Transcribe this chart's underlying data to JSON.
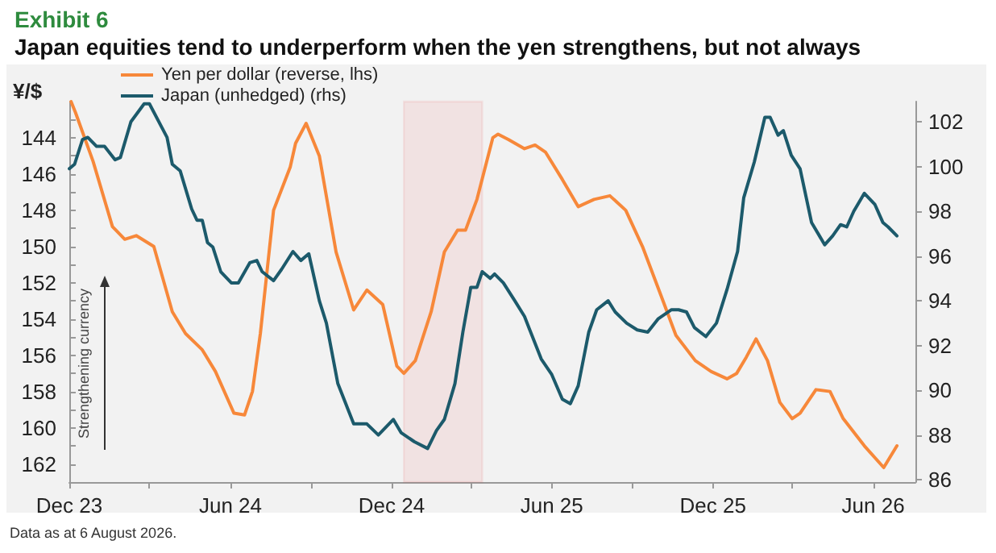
{
  "chart_data": {
    "type": "line",
    "title": "Exhibit 6",
    "subtitle": "Japan equities tend to underperform when the yen strengthens, but not always",
    "ylabel": "¥/$",
    "annotations": [
      "Strengthening currency",
      "Data as at 6 August 2026."
    ],
    "xlim": [
      "2023-12-01",
      "2026-07-19"
    ],
    "xticks": [
      {
        "value": "2023-12-01",
        "label": "Dec 23"
      },
      {
        "value": "2024-03-01",
        "label": null
      },
      {
        "value": "2024-06-01",
        "label": "Jun 24"
      },
      {
        "value": "2024-09-01",
        "label": null
      },
      {
        "value": "2024-12-01",
        "label": "Dec 24"
      },
      {
        "value": "2025-03-01",
        "label": null
      },
      {
        "value": "2025-06-01",
        "label": "Jun 25"
      },
      {
        "value": "2025-09-01",
        "label": null
      },
      {
        "value": "2025-12-01",
        "label": "Dec 25"
      },
      {
        "value": "2026-03-01",
        "label": null
      },
      {
        "value": "2026-06-01",
        "label": "Jun 26"
      }
    ],
    "ylim": [
      163,
      142
    ],
    "yticks": [
      {
        "value": 143,
        "label": null
      },
      144,
      {
        "value": 145,
        "label": null
      },
      146,
      {
        "value": 147,
        "label": null
      },
      148,
      {
        "value": 149,
        "label": null
      },
      150,
      {
        "value": 151,
        "label": null
      },
      152,
      {
        "value": 153,
        "label": null
      },
      154,
      {
        "value": 155,
        "label": null
      },
      156,
      {
        "value": 157,
        "label": null
      },
      158,
      {
        "value": 159,
        "label": null
      },
      160,
      {
        "value": 161,
        "label": null
      },
      162
    ],
    "y2lim": [
      85.9,
      102.9
    ],
    "y2ticks": [
      86,
      88,
      90,
      92,
      94,
      96,
      98,
      100,
      102
    ],
    "grid": false,
    "legend": "top",
    "marker": "none",
    "line_style": "solid",
    "bands": [
      {
        "axis": "x",
        "from": "2024-12-15",
        "to": "2025-03-14",
        "color": "#e8262b"
      }
    ],
    "series": [
      {
        "name": "Yen per dollar (reverse, lhs)",
        "color": "#f7883a",
        "x": [
          "2023-12-03",
          "2023-12-08",
          "2023-12-28",
          "2024-01-19",
          "2024-02-02",
          "2024-02-15",
          "2024-03-06",
          "2024-03-27",
          "2024-04-11",
          "2024-04-30",
          "2024-05-15",
          "2024-06-05",
          "2024-06-17",
          "2024-06-26",
          "2024-07-05",
          "2024-07-20",
          "2024-08-08",
          "2024-08-14",
          "2024-08-26",
          "2024-09-10",
          "2024-09-29",
          "2024-10-19",
          "2024-11-03",
          "2024-11-21",
          "2024-12-07",
          "2024-12-15",
          "2024-12-28",
          "2025-01-15",
          "2025-01-30",
          "2025-02-14",
          "2025-02-23",
          "2025-03-08",
          "2025-03-26",
          "2025-04-01",
          "2025-04-13",
          "2025-05-01",
          "2025-05-13",
          "2025-05-25",
          "2025-06-13",
          "2025-07-01",
          "2025-07-19",
          "2025-08-06",
          "2025-08-24",
          "2025-09-12",
          "2025-10-03",
          "2025-10-20",
          "2025-11-11",
          "2025-11-29",
          "2025-12-17",
          "2025-12-28",
          "2026-01-08",
          "2026-01-19",
          "2026-02-01",
          "2026-02-15",
          "2026-03-01",
          "2026-03-10",
          "2026-03-28",
          "2026-04-13",
          "2026-04-28",
          "2026-05-22",
          "2026-06-13",
          "2026-06-28"
        ],
        "values": [
          142.0,
          142.6,
          145.3,
          148.9,
          149.6,
          149.4,
          150.0,
          153.6,
          154.8,
          155.7,
          156.9,
          159.2,
          159.3,
          158.0,
          154.8,
          148.0,
          145.6,
          144.3,
          143.2,
          145.0,
          150.3,
          153.5,
          152.4,
          153.2,
          156.6,
          157.0,
          156.3,
          153.6,
          150.3,
          149.1,
          149.1,
          147.4,
          144.0,
          143.8,
          144.1,
          144.6,
          144.4,
          144.8,
          146.3,
          147.8,
          147.4,
          147.2,
          148.0,
          150.0,
          152.7,
          154.9,
          156.3,
          156.9,
          157.3,
          157.0,
          156.1,
          155.1,
          156.3,
          158.6,
          159.5,
          159.2,
          157.9,
          158.0,
          159.5,
          161.0,
          162.2,
          161.0
        ]
      },
      {
        "name": "Japan (unhedged) (rhs)",
        "color": "#1c5a6b",
        "axis": "y2",
        "x": [
          "2023-12-01",
          "2023-12-07",
          "2023-12-16",
          "2023-12-22",
          "2024-01-01",
          "2024-01-10",
          "2024-01-22",
          "2024-01-28",
          "2024-02-09",
          "2024-02-24",
          "2024-03-01",
          "2024-03-21",
          "2024-03-27",
          "2024-04-05",
          "2024-04-18",
          "2024-04-24",
          "2024-04-30",
          "2024-05-06",
          "2024-05-12",
          "2024-05-21",
          "2024-06-02",
          "2024-06-10",
          "2024-06-23",
          "2024-07-01",
          "2024-07-07",
          "2024-07-20",
          "2024-07-29",
          "2024-08-11",
          "2024-08-20",
          "2024-08-29",
          "2024-09-10",
          "2024-09-18",
          "2024-10-01",
          "2024-10-10",
          "2024-10-19",
          "2024-11-03",
          "2024-11-16",
          "2024-12-03",
          "2024-12-12",
          "2024-12-27",
          "2025-01-11",
          "2025-01-21",
          "2025-01-30",
          "2025-02-11",
          "2025-02-20",
          "2025-03-01",
          "2025-03-08",
          "2025-03-14",
          "2025-03-23",
          "2025-03-28",
          "2025-04-07",
          "2025-04-20",
          "2025-05-01",
          "2025-05-07",
          "2025-05-20",
          "2025-06-01",
          "2025-06-13",
          "2025-06-22",
          "2025-07-01",
          "2025-07-13",
          "2025-07-22",
          "2025-08-04",
          "2025-08-12",
          "2025-08-25",
          "2025-09-06",
          "2025-09-18",
          "2025-09-30",
          "2025-10-15",
          "2025-10-23",
          "2025-11-01",
          "2025-11-10",
          "2025-11-23",
          "2025-12-05",
          "2025-12-17",
          "2025-12-29",
          "2026-01-05",
          "2026-01-17",
          "2026-01-29",
          "2026-02-04",
          "2026-02-13",
          "2026-02-19",
          "2026-02-28",
          "2026-03-10",
          "2026-03-23",
          "2026-04-07",
          "2026-04-16",
          "2026-04-25",
          "2026-05-02",
          "2026-05-10",
          "2026-05-22",
          "2026-06-03",
          "2026-06-12",
          "2026-06-18",
          "2026-06-28"
        ],
        "values": [
          99.9,
          100.1,
          101.2,
          101.3,
          100.9,
          100.9,
          100.3,
          100.4,
          102.0,
          102.8,
          102.8,
          101.3,
          100.1,
          99.8,
          98.1,
          97.6,
          97.6,
          96.6,
          96.4,
          95.3,
          94.8,
          94.8,
          95.7,
          95.8,
          95.3,
          94.9,
          95.4,
          96.2,
          95.8,
          96.1,
          94.0,
          93.0,
          90.3,
          89.4,
          88.5,
          88.5,
          88.0,
          88.7,
          88.1,
          87.7,
          87.4,
          88.2,
          88.7,
          90.3,
          92.6,
          94.6,
          94.6,
          95.3,
          95.0,
          95.2,
          94.8,
          94.0,
          93.3,
          92.7,
          91.4,
          90.7,
          89.6,
          89.4,
          90.2,
          92.6,
          93.6,
          94.0,
          93.5,
          93.0,
          92.7,
          92.6,
          93.2,
          93.6,
          93.6,
          93.5,
          92.8,
          92.4,
          93.0,
          94.5,
          96.2,
          98.6,
          100.2,
          102.2,
          102.2,
          101.4,
          101.6,
          100.5,
          99.9,
          97.5,
          96.5,
          96.9,
          97.4,
          97.3,
          98.0,
          98.8,
          98.3,
          97.5,
          97.3,
          96.9
        ]
      }
    ]
  }
}
